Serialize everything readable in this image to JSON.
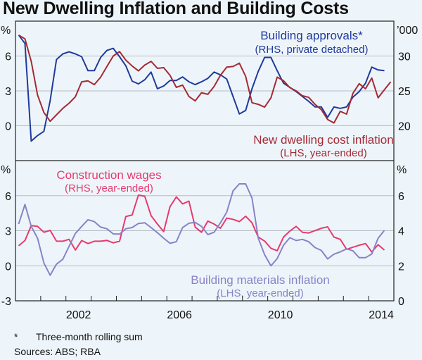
{
  "title": "New Dwelling Inflation and Building Costs",
  "footnote_marker": "*",
  "footnote": "Three-month rolling sum",
  "sources": "Sources:  ABS; RBA",
  "colors": {
    "background": "#eef5fa",
    "grid": "#b4bcc4",
    "axis": "#222222"
  },
  "chart_data": [
    {
      "type": "line",
      "panel": "top",
      "xlim": [
        2000,
        2015
      ],
      "x_start": 2000.125,
      "x_step": 0.25,
      "x_ticks": [
        "2002",
        "2006",
        "2010",
        "2014"
      ],
      "ylim_left": [
        -3,
        9
      ],
      "ylim_right": [
        15,
        35
      ],
      "left_unit": "%",
      "right_unit": "’000",
      "left_ticks": [
        6,
        3,
        0
      ],
      "right_ticks": [
        30,
        25,
        20
      ],
      "grid": true,
      "series": [
        {
          "name": "Building approvals*",
          "sublabel": "(RHS, private detached)",
          "axis": "right",
          "color": "#1f3a9c",
          "values": [
            33.0,
            31.8,
            17.8,
            18.6,
            19.2,
            23.6,
            29.5,
            30.3,
            30.6,
            30.3,
            29.9,
            27.9,
            27.9,
            29.8,
            30.8,
            31.1,
            29.9,
            28.6,
            26.4,
            26.0,
            26.6,
            27.7,
            25.3,
            25.7,
            26.5,
            26.5,
            27.0,
            26.3,
            25.9,
            26.3,
            26.8,
            27.7,
            27.3,
            26.7,
            24.2,
            21.7,
            22.2,
            25.3,
            27.8,
            29.8,
            29.8,
            27.9,
            26.1,
            25.5,
            24.9,
            24.2,
            23.5,
            22.7,
            22.7,
            21.2,
            22.7,
            22.5,
            22.7,
            24.1,
            24.9,
            26.1,
            28.4,
            28.0,
            27.9
          ]
        },
        {
          "name": "New dwelling cost inflation",
          "sublabel": "(LHS, year-ended)",
          "axis": "left",
          "color": "#a52a34",
          "values": [
            7.8,
            7.48,
            5.54,
            2.64,
            1.14,
            0.38,
            0.94,
            1.5,
            1.94,
            2.5,
            3.78,
            3.86,
            3.54,
            4.18,
            5.1,
            6.0,
            6.38,
            5.64,
            5.14,
            4.72,
            5.22,
            5.54,
            4.94,
            5.0,
            4.34,
            3.3,
            3.5,
            2.52,
            2.14,
            2.84,
            2.7,
            3.38,
            4.34,
            5.04,
            5.1,
            5.38,
            4.24,
            1.98,
            1.84,
            1.6,
            2.4,
            4.18,
            3.88,
            3.28,
            3.0,
            2.58,
            2.44,
            1.84,
            1.38,
            0.54,
            0.24,
            1.24,
            1.0,
            2.78,
            3.62,
            3.18,
            4.1,
            2.4,
            3.1,
            3.78
          ]
        }
      ]
    },
    {
      "type": "line",
      "panel": "bottom",
      "xlim": [
        2000,
        2015
      ],
      "x_start": 2000.125,
      "x_step": 0.25,
      "x_ticks": [
        "2002",
        "2006",
        "2010",
        "2014"
      ],
      "ylim_left": [
        -3,
        9
      ],
      "ylim_right": [
        0,
        8
      ],
      "left_unit": "%",
      "right_unit": "%",
      "left_ticks": [
        6,
        3,
        0,
        -3
      ],
      "right_ticks": [
        6,
        4,
        2,
        0
      ],
      "grid": true,
      "series": [
        {
          "name": "Construction wages",
          "sublabel": "(RHS, year-ended)",
          "axis": "right",
          "color": "#e63a6e",
          "values": [
            3.14,
            3.44,
            4.29,
            4.25,
            3.91,
            4.02,
            3.41,
            3.4,
            3.51,
            2.9,
            3.44,
            3.27,
            3.4,
            3.4,
            3.45,
            3.31,
            3.4,
            4.81,
            4.9,
            6.03,
            5.97,
            4.86,
            4.38,
            3.95,
            5.37,
            5.93,
            5.53,
            5.69,
            4.21,
            3.91,
            4.55,
            4.38,
            4.14,
            4.72,
            4.65,
            4.52,
            4.83,
            4.45,
            3.64,
            3.41,
            3.0,
            2.86,
            3.64,
            3.98,
            4.25,
            3.91,
            3.87,
            4.01,
            4.14,
            4.22,
            3.64,
            3.51,
            2.94,
            3.06,
            3.17,
            3.27,
            2.79,
            3.2,
            2.9
          ]
        },
        {
          "name": "Building materials inflation",
          "sublabel": "(LHS, year-ended)",
          "axis": "left",
          "color": "#8a82c8",
          "values": [
            3.58,
            5.25,
            3.37,
            2.36,
            0.24,
            -0.81,
            0.14,
            0.55,
            1.66,
            2.77,
            3.37,
            3.94,
            3.78,
            3.31,
            3.17,
            2.73,
            2.71,
            3.17,
            3.27,
            3.62,
            3.68,
            3.27,
            2.83,
            2.36,
            1.92,
            2.06,
            3.27,
            3.64,
            3.72,
            3.37,
            2.67,
            2.87,
            3.68,
            4.59,
            6.4,
            7.01,
            7.01,
            5.8,
            2.36,
            0.95,
            0.0,
            0.61,
            1.76,
            2.4,
            2.16,
            2.26,
            2.06,
            1.56,
            1.31,
            0.59,
            0.99,
            1.19,
            1.45,
            1.29,
            0.69,
            0.69,
            1.01,
            2.36,
            3.03
          ]
        }
      ]
    }
  ]
}
